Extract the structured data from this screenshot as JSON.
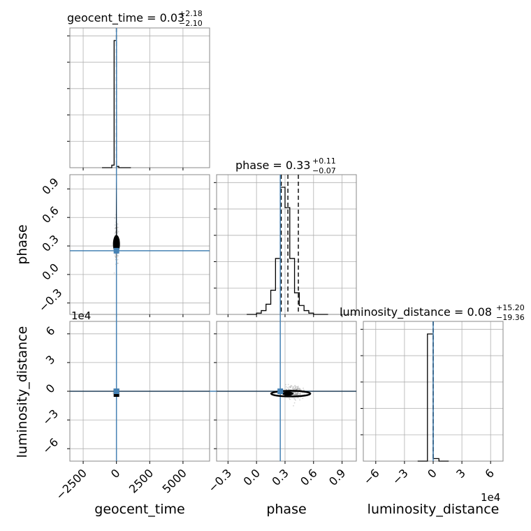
{
  "chart_data": {
    "type": "corner",
    "parameters": [
      "geocent_time",
      "phase",
      "luminosity_distance"
    ],
    "titles": [
      {
        "param": "geocent_time",
        "median": "0.03",
        "plus": "+2.18",
        "minus": "−2.10"
      },
      {
        "param": "phase",
        "median": "0.33",
        "plus": "+0.11",
        "minus": "−0.07"
      },
      {
        "param": "luminosity_distance",
        "median": "0.08",
        "plus": "+15.20",
        "minus": "−19.36"
      }
    ],
    "ranges": {
      "geocent_time": [
        -3500,
        7000
      ],
      "phase": [
        -0.42,
        1.05
      ],
      "luminosity_distance_e4": [
        -7.3,
        7.3
      ]
    },
    "ticks": {
      "geocent_time": [
        -2500,
        0,
        2500,
        5000
      ],
      "phase": [
        -0.3,
        0.0,
        0.3,
        0.6,
        0.9
      ],
      "luminosity_distance": [
        -6,
        -3,
        0,
        3,
        6
      ]
    },
    "tick_labels": {
      "geocent_time": [
        "−2500",
        "0",
        "2500",
        "5000"
      ],
      "phase_x": [
        "−0.3",
        "0.0",
        "0.3",
        "0.6",
        "0.9"
      ],
      "phase_y": [
        "−0.3",
        "0.0",
        "0.3",
        "0.6",
        "0.9"
      ],
      "luminosity_distance_x": [
        "−6",
        "−3",
        "0",
        "3",
        "6"
      ],
      "luminosity_distance_y": [
        "−6",
        "−3",
        "0",
        "3",
        "6"
      ]
    },
    "offset_text": "1e4",
    "truths": {
      "geocent_time": 0,
      "phase": 0.25,
      "luminosity_distance_e4": 0
    },
    "quantiles": {
      "geocent_time": [
        -2.07,
        0.03,
        2.21
      ],
      "phase": [
        0.26,
        0.33,
        0.44
      ],
      "luminosity_distance_e4": [
        -0.0019,
        0.0,
        0.0015
      ]
    },
    "hist_geocent_time": {
      "edges": [
        -350,
        -175,
        0,
        175,
        350
      ],
      "counts": [
        0.02,
        1.0,
        0.01,
        0.0
      ]
    },
    "hist_phase": {
      "edges": [
        0.0,
        0.05,
        0.1,
        0.15,
        0.2,
        0.25,
        0.3,
        0.35,
        0.4,
        0.45,
        0.5,
        0.55,
        0.6,
        0.65
      ],
      "counts": [
        0.01,
        0.03,
        0.08,
        0.19,
        0.44,
        1.0,
        0.84,
        0.44,
        0.17,
        0.07,
        0.03,
        0.01,
        0.0
      ]
    },
    "hist_luminosity_distance": {
      "edges": [
        -0.6,
        0.0,
        0.6
      ],
      "counts": [
        1.0,
        0.02
      ]
    },
    "grid": true,
    "colors": {
      "truth": "#4682b4",
      "hist": "#000000",
      "grid": "#b0b0b0",
      "samples": "#888888"
    }
  }
}
